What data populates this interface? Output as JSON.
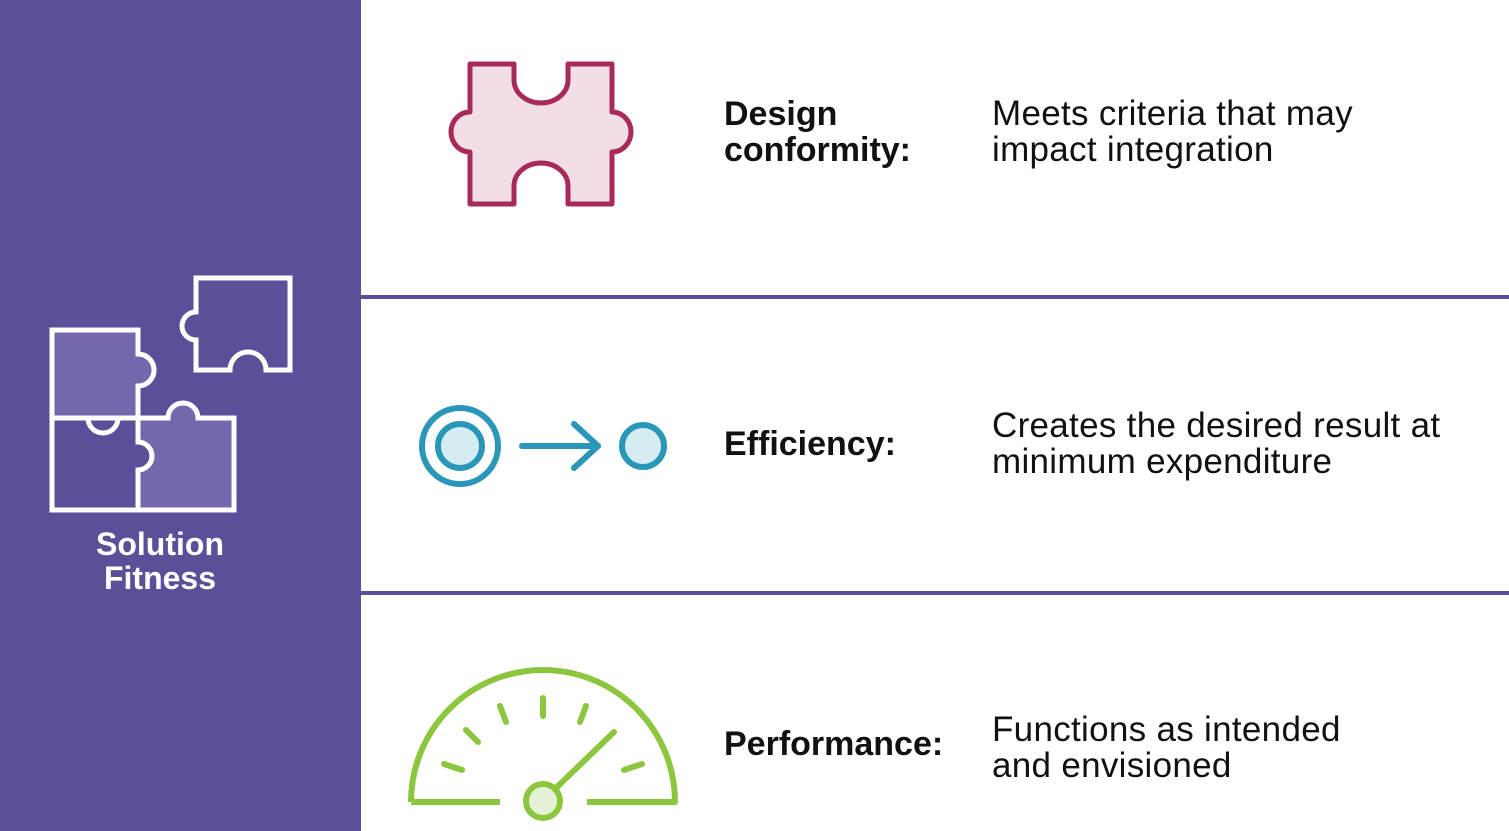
{
  "sidebar": {
    "title_line1": "Solution",
    "title_line2": "Fitness",
    "icon": "puzzle-pieces-icon",
    "background_color": "#5b4f9a"
  },
  "rows": [
    {
      "icon": "puzzle-piece-icon",
      "icon_color": "#a72a5a",
      "term_line1": "Design",
      "term_line2": "conformity:",
      "desc_line1": "Meets criteria that may",
      "desc_line2": "impact integration"
    },
    {
      "icon": "target-arrow-icon",
      "icon_color": "#2a97b8",
      "term_line1": "Efficiency:",
      "desc_line1": "Creates the desired result at",
      "desc_line2": "minimum expenditure"
    },
    {
      "icon": "speedometer-icon",
      "icon_color": "#8cc63f",
      "term_line1": "Performance:",
      "desc_line1": "Functions as intended",
      "desc_line2": "and envisioned"
    }
  ]
}
